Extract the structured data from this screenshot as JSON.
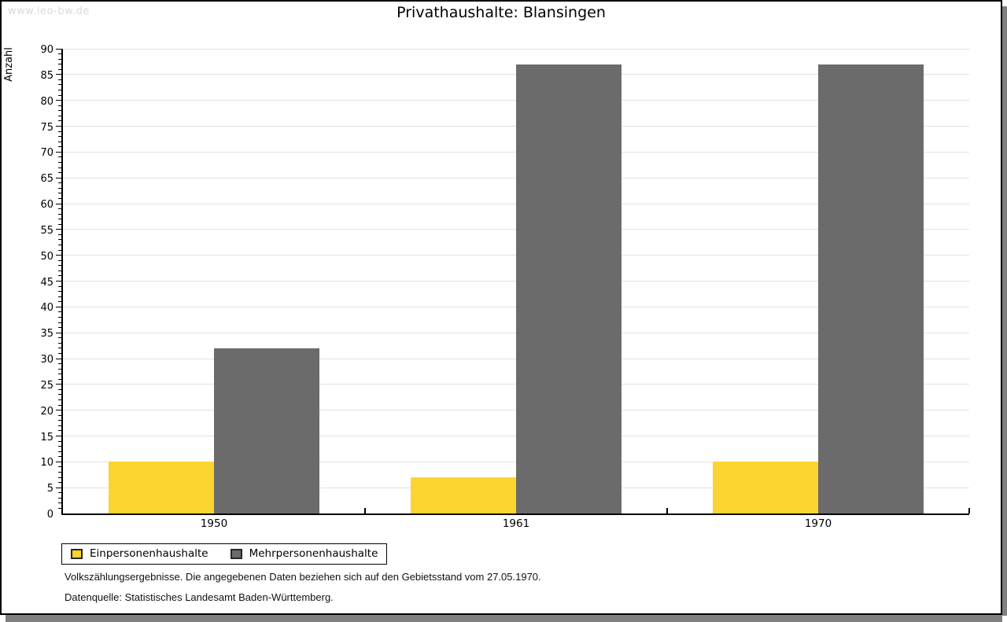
{
  "watermark": "www.leo-bw.de",
  "header": {
    "title": "Privathaushalte: Blansingen"
  },
  "chart_data": {
    "type": "bar",
    "title": "Privathaushalte: Blansingen",
    "categories": [
      "1950",
      "1961",
      "1970"
    ],
    "series": [
      {
        "name": "Einpersonenhaushalte",
        "color": "#FCD42F",
        "values": [
          10,
          7,
          10
        ]
      },
      {
        "name": "Mehrpersonenhaushalte",
        "color": "#6B6B6B",
        "values": [
          32,
          87,
          87
        ]
      }
    ],
    "xlabel": "",
    "ylabel": "Anzahl",
    "ylim": [
      0,
      90
    ],
    "ytick_step": 5,
    "y_minor_tick_step": 1,
    "grid": "horizontal-major",
    "legend_position": "bottom-left"
  },
  "footer": {
    "line1": "Volkszählungsergebnisse. Die angegebenen Daten beziehen sich auf den Gebietsstand vom 27.05.1970.",
    "line2": "Datenquelle: Statistisches Landesamt Baden-Württemberg."
  },
  "colors": {
    "series1": "#FCD42F",
    "series2": "#6B6B6B",
    "gridline": "#e2e2e2",
    "axis": "#000000",
    "watermark": "#d9d9d9",
    "frame_shadow": "#808080"
  }
}
